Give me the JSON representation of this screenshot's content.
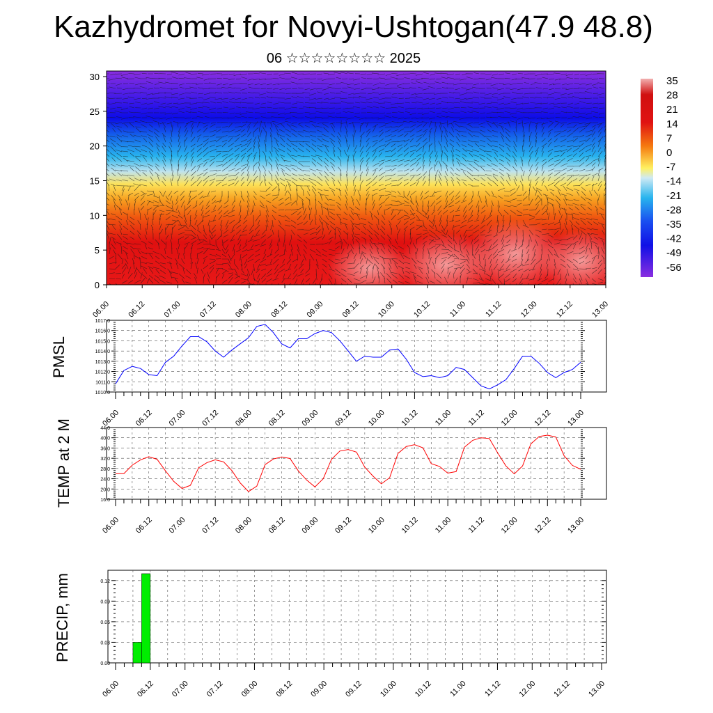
{
  "header": {
    "title": "Kazhydromet for Novyi-Ushtogan(47.9 48.8)",
    "date": "06 ☆☆☆☆☆☆☆☆ 2025"
  },
  "colorbar": {
    "labels": [
      "35",
      "28",
      "21",
      "14",
      "7",
      "0",
      "-7",
      "-14",
      "-21",
      "-28",
      "-35",
      "-42",
      "-49",
      "-56"
    ]
  },
  "chart_data": [
    {
      "type": "heatmap",
      "title": "",
      "description_vars": "air temperature cross-section with wind vectors",
      "x_ticks": [
        "06.00",
        "06.12",
        "07.00",
        "07.12",
        "08.00",
        "08.12",
        "09.00",
        "09.12",
        "10.00",
        "10.12",
        "11.00",
        "11.12",
        "12.00",
        "12.12",
        "13.00"
      ],
      "y_ticks": [
        0,
        5,
        10,
        15,
        20,
        25,
        30
      ],
      "ylim": [
        0,
        30.8
      ],
      "color_scale": [
        35,
        -56
      ],
      "colors": {
        "hot": "#f07a7a",
        "warm": "#e01212",
        "orange": "#f57a10",
        "yellow": "#fff060",
        "cyan": "#28b4ee",
        "blue": "#1010e6",
        "violet": "#8a2ee0"
      }
    },
    {
      "type": "line",
      "ylabel": "PMSL",
      "x_ticks": [
        "06.00",
        "06.12",
        "07.00",
        "07.12",
        "08.00",
        "08.12",
        "09.00",
        "09.12",
        "10.00",
        "10.12",
        "11.00",
        "11.12",
        "12.00",
        "12.12",
        "13.00"
      ],
      "y_ticks": [
        "1010.0",
        "1011.0",
        "1012.0",
        "1013.0",
        "1014.0",
        "1015.0",
        "1016.0",
        "1017.0"
      ],
      "ylim": [
        1010.0,
        1017.0
      ],
      "xlim": [
        0,
        168
      ],
      "color": "#0000ff",
      "x": [
        0,
        3,
        6,
        9,
        12,
        15,
        18,
        21,
        24,
        27,
        30,
        33,
        36,
        39,
        42,
        45,
        48,
        51,
        54,
        57,
        60,
        63,
        66,
        69,
        72,
        75,
        78,
        81,
        84,
        87,
        90,
        93,
        96,
        99,
        102,
        105,
        108,
        111,
        114,
        117,
        120,
        123,
        126,
        129,
        132,
        135,
        138,
        141,
        144,
        147,
        150,
        153,
        156,
        159,
        162
      ],
      "values": [
        1010.8,
        1012.1,
        1012.5,
        1012.3,
        1011.7,
        1011.6,
        1012.9,
        1013.5,
        1014.5,
        1015.4,
        1015.4,
        1014.9,
        1014.0,
        1013.4,
        1014.1,
        1014.7,
        1015.3,
        1016.4,
        1016.6,
        1015.8,
        1014.7,
        1014.3,
        1015.2,
        1015.2,
        1015.7,
        1016.0,
        1015.8,
        1015.0,
        1014.0,
        1013.0,
        1013.5,
        1013.4,
        1013.4,
        1014.1,
        1014.2,
        1013.2,
        1011.9,
        1011.5,
        1011.6,
        1011.4,
        1011.6,
        1012.4,
        1012.2,
        1011.4,
        1010.6,
        1010.3,
        1010.7,
        1011.2,
        1012.3,
        1013.5,
        1013.5,
        1012.8,
        1011.9,
        1011.4,
        1011.9
      ],
      "x_tail": [
        165,
        168
      ],
      "values_tail": [
        1012.2,
        1012.9
      ]
    },
    {
      "type": "line",
      "ylabel": "TEMP at 2 M",
      "x_ticks": [
        "06.00",
        "06.12",
        "07.00",
        "07.12",
        "08.00",
        "08.12",
        "09.00",
        "09.12",
        "10.00",
        "10.12",
        "11.00",
        "11.12",
        "12.00",
        "12.12",
        "13.00"
      ],
      "y_ticks": [
        "16.0",
        "20.0",
        "24.0",
        "28.0",
        "32.0",
        "36.0",
        "40.0",
        "44.0"
      ],
      "ylim": [
        16.0,
        44.0
      ],
      "xlim": [
        0,
        168
      ],
      "color": "#ff0000",
      "x": [
        0,
        3,
        6,
        9,
        12,
        15,
        18,
        21,
        24,
        27,
        30,
        33,
        36,
        39,
        42,
        45,
        48,
        51,
        54,
        57,
        60,
        63,
        66,
        69,
        72,
        75,
        78,
        81,
        84,
        87,
        90,
        93,
        96,
        99,
        102,
        105,
        108,
        111,
        114,
        117,
        120,
        123,
        126,
        129,
        132,
        135,
        138,
        141,
        144,
        147,
        150,
        153,
        156,
        159,
        162,
        165,
        168
      ],
      "values": [
        26.0,
        26.0,
        29.3,
        31.4,
        32.6,
        31.6,
        27.1,
        23.0,
        20.2,
        21.4,
        28.3,
        30.3,
        31.4,
        30.6,
        27.2,
        22.4,
        19.0,
        21.1,
        29.5,
        31.7,
        32.5,
        31.9,
        27.1,
        23.5,
        20.8,
        24.0,
        31.6,
        34.8,
        35.4,
        34.4,
        28.5,
        25.0,
        22.0,
        24.4,
        33.9,
        36.6,
        37.3,
        36.1,
        29.9,
        28.8,
        26.2,
        26.8,
        36.3,
        39.0,
        40.0,
        39.7,
        34.1,
        29.0,
        25.9,
        29.0,
        37.6,
        40.5,
        41.0,
        40.3,
        33.0,
        29.2,
        27.7
      ]
    },
    {
      "type": "bar",
      "ylabel": "PRECIP, mm",
      "x_ticks": [
        "06.00",
        "06.12",
        "07.00",
        "07.12",
        "08.00",
        "08.12",
        "09.00",
        "09.12",
        "10.00",
        "10.12",
        "11.00",
        "11.12",
        "12.00",
        "12.12",
        "13.00"
      ],
      "y_ticks": [
        "0.00",
        "0.03",
        "0.06",
        "0.09",
        "0.12"
      ],
      "ylim": [
        0,
        0.135
      ],
      "xlim": [
        0,
        168
      ],
      "color": "#00ee00",
      "bars": [
        {
          "x0": 6,
          "x1": 9,
          "value": 0.03
        },
        {
          "x0": 9,
          "x1": 12,
          "value": 0.13
        }
      ]
    }
  ]
}
